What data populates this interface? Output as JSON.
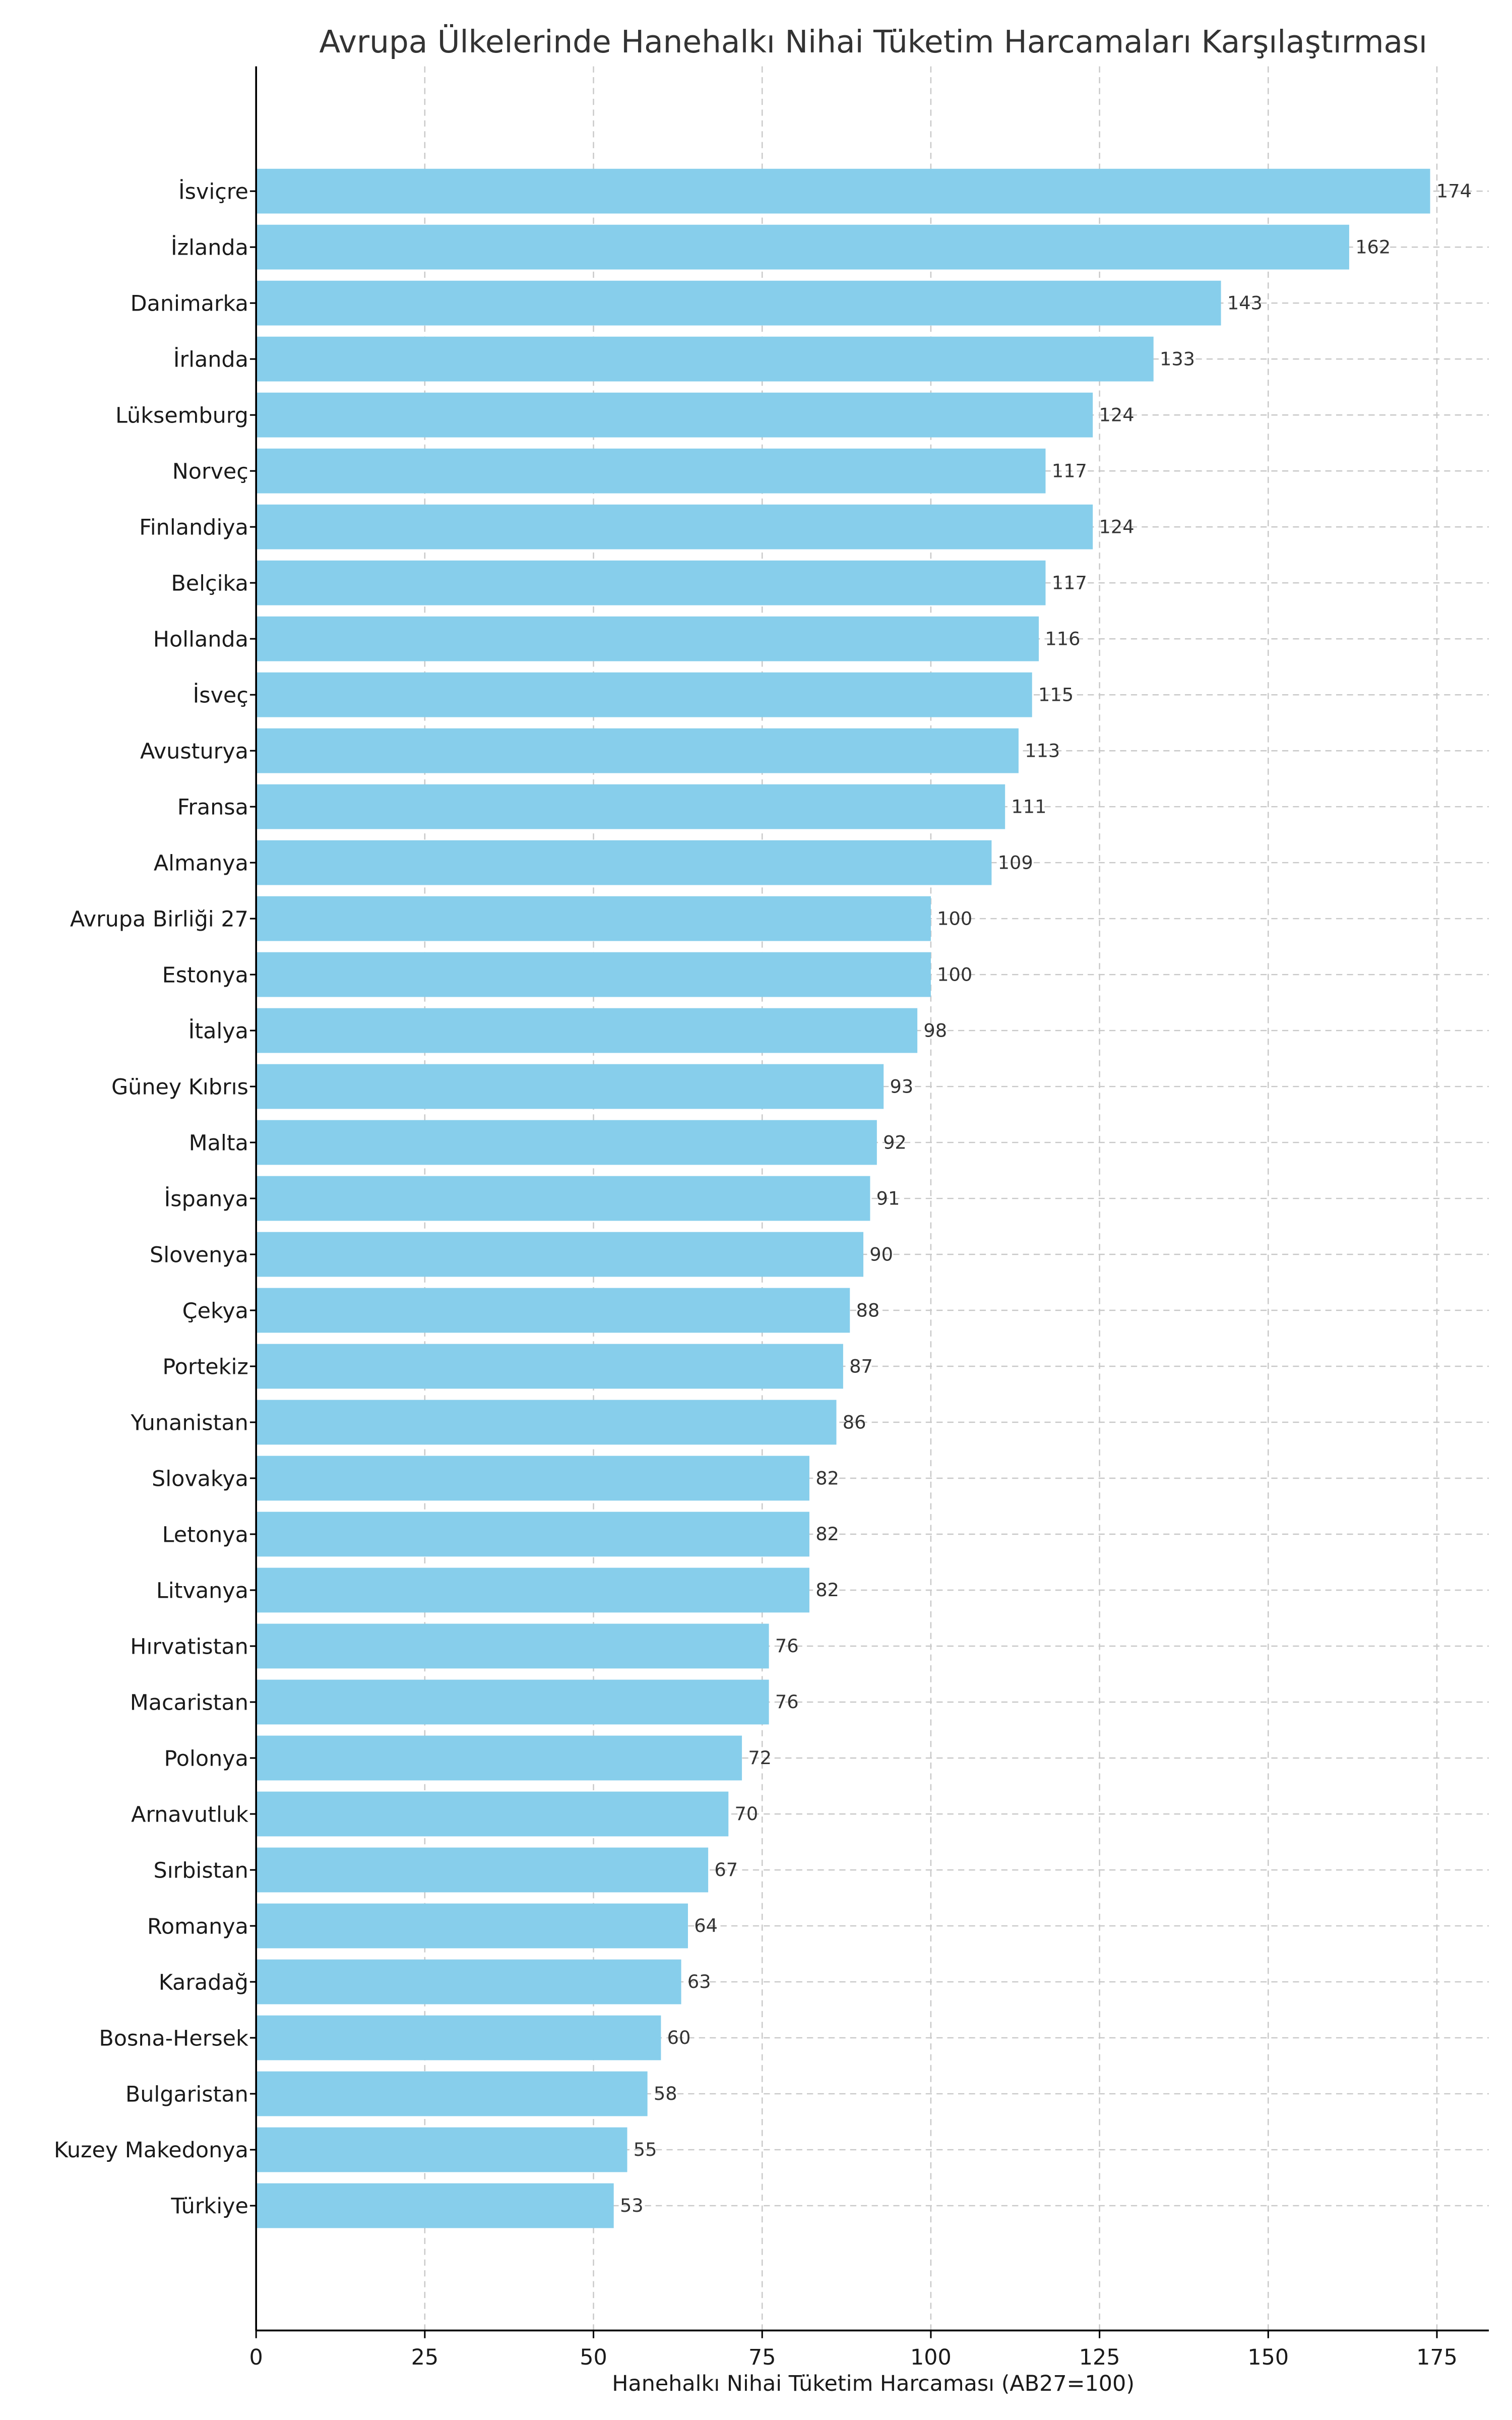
{
  "chart_data": {
    "type": "bar",
    "orientation": "horizontal",
    "title": "Avrupa Ülkelerinde Hanehalkı Nihai Tüketim Harcamaları Karşılaştırması",
    "xlabel": "Hanehalkı Nihai Tüketim Harcaması (AB27=100)",
    "ylabel": "",
    "xlim": [
      0,
      182.7
    ],
    "xticks": [
      "0",
      "25",
      "50",
      "75",
      "100",
      "125",
      "150",
      "175"
    ],
    "grid": true,
    "bar_color": "#87CEEB",
    "categories": [
      "İsviçre",
      "İzlanda",
      "Danimarka",
      "İrlanda",
      "Lüksemburg",
      "Norveç",
      "Finlandiya",
      "Belçika",
      "Hollanda",
      "İsveç",
      "Avusturya",
      "Fransa",
      "Almanya",
      "Avrupa Birliği 27",
      "Estonya",
      "İtalya",
      "Güney Kıbrıs",
      "Malta",
      "İspanya",
      "Slovenya",
      "Çekya",
      "Portekiz",
      "Yunanistan",
      "Slovakya",
      "Letonya",
      "Litvanya",
      "Hırvatistan",
      "Macaristan",
      "Polonya",
      "Arnavutluk",
      "Sırbistan",
      "Romanya",
      "Karadağ",
      "Bosna-Hersek",
      "Bulgaristan",
      "Kuzey Makedonya",
      "Türkiye"
    ],
    "values": [
      174,
      162,
      143,
      133,
      124,
      117,
      124,
      117,
      116,
      115,
      113,
      111,
      109,
      100,
      100,
      98,
      93,
      92,
      91,
      90,
      88,
      87,
      86,
      82,
      82,
      82,
      76,
      76,
      72,
      70,
      67,
      64,
      63,
      60,
      58,
      55,
      53
    ]
  }
}
